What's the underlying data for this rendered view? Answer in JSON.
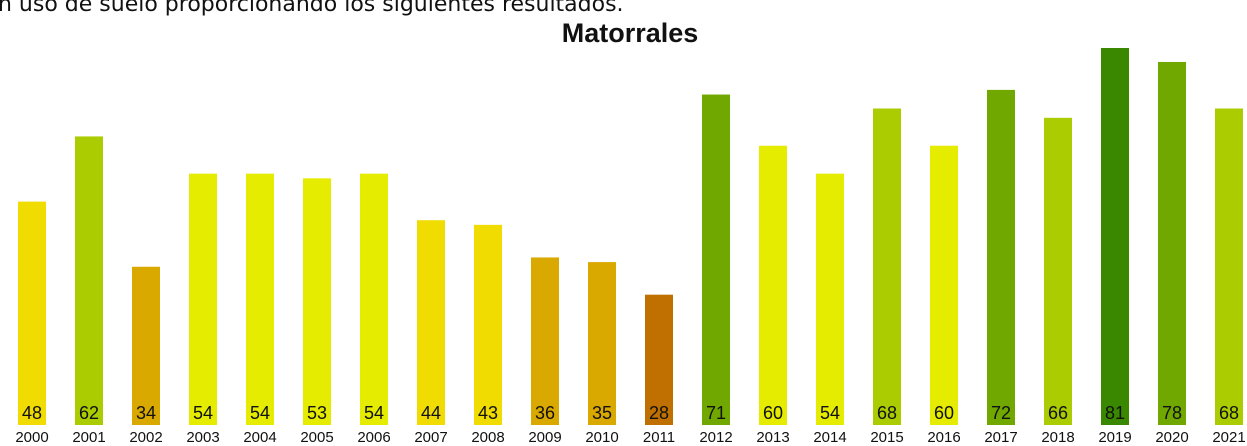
{
  "intro_text": "n uso de suelo proporcionando los siguientes resultados.",
  "chart_data": {
    "type": "bar",
    "title": "Matorrales",
    "categories": [
      "2000",
      "2001",
      "2002",
      "2003",
      "2004",
      "2005",
      "2006",
      "2007",
      "2008",
      "2009",
      "2010",
      "2011",
      "2012",
      "2013",
      "2014",
      "2015",
      "2016",
      "2017",
      "2018",
      "2019",
      "2020",
      "2021"
    ],
    "values": [
      48,
      62,
      34,
      54,
      54,
      53,
      54,
      44,
      43,
      36,
      35,
      28,
      71,
      60,
      54,
      68,
      60,
      72,
      66,
      81,
      78,
      68
    ],
    "colors": [
      "#f0dc00",
      "#aacc00",
      "#d9a900",
      "#e5ec00",
      "#e5ec00",
      "#e5ec00",
      "#e5ec00",
      "#f0dc00",
      "#f0dc00",
      "#d9a900",
      "#d9a900",
      "#c07000",
      "#70a800",
      "#e5ec00",
      "#e5ec00",
      "#aacc00",
      "#e5ec00",
      "#70a800",
      "#aacc00",
      "#3a8800",
      "#70a800",
      "#aacc00"
    ]
  }
}
